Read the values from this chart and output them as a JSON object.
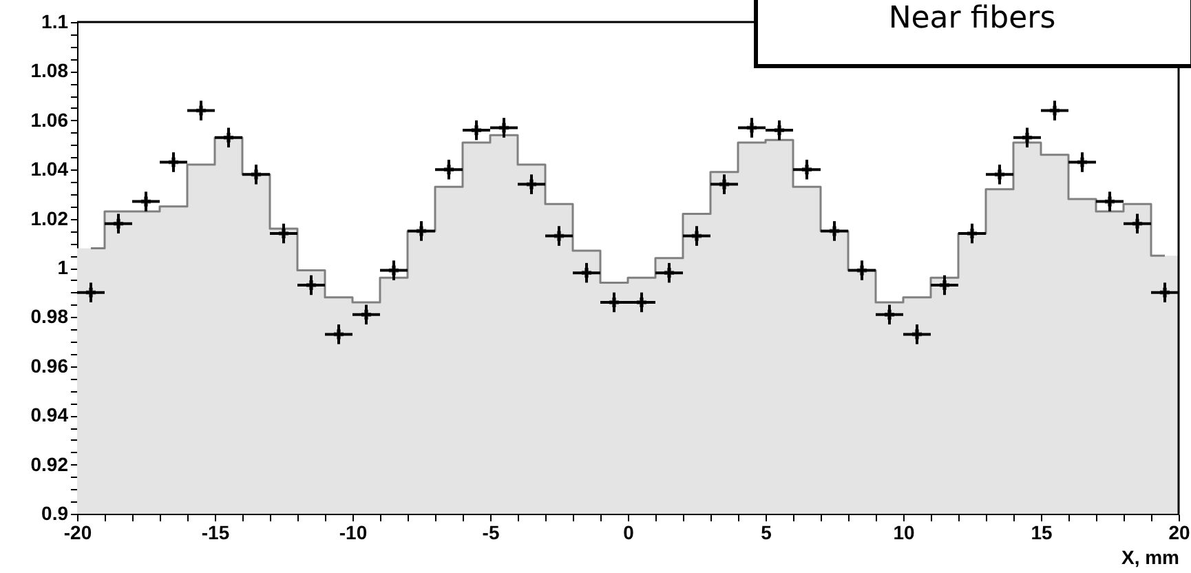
{
  "chart_data": {
    "type": "histogram",
    "title": "Near fibers",
    "xlabel": "X, mm",
    "bins": [
      -20,
      -19,
      -18,
      -17,
      -16,
      -15,
      -14,
      -13,
      -12,
      -11,
      -10,
      -9,
      -8,
      -7,
      -6,
      -5,
      -4,
      -3,
      -2,
      -1,
      0,
      1,
      2,
      3,
      4,
      5,
      6,
      7,
      8,
      9,
      10,
      11,
      12,
      13,
      14,
      15,
      16,
      17,
      18,
      19,
      20
    ],
    "series": [
      {
        "color": "#e4e4e4",
        "values": [
          1.008,
          1.023,
          1.023,
          1.025,
          1.042,
          1.053,
          1.038,
          1.016,
          0.999,
          0.988,
          0.986,
          0.996,
          1.015,
          1.033,
          1.051,
          1.054,
          1.042,
          1.026,
          1.007,
          0.994,
          0.996,
          1.004,
          1.022,
          1.039,
          1.051,
          1.052,
          1.033,
          1.015,
          0.999,
          0.986,
          0.988,
          0.996,
          1.014,
          1.032,
          1.051,
          1.046,
          1.028,
          1.023,
          1.026,
          1.005
        ]
      },
      {
        "type": "step",
        "color": "#808080",
        "x": [
          -19.5,
          -18.5,
          -17.5,
          -16.5,
          -15.5,
          -14.5,
          -13.5,
          -12.5,
          -11.5,
          -10.5,
          -9.5,
          -8.5,
          -7.5,
          -6.5,
          -5.5,
          -4.5,
          -3.5,
          -2.5,
          -1.5,
          -0.5,
          0.5,
          1.5,
          2.5,
          3.5,
          4.5,
          5.5,
          6.5,
          7.5,
          8.5,
          9.5,
          10.5,
          11.5,
          12.5,
          13.5,
          14.5,
          15.5,
          16.5,
          17.5,
          18.5,
          19.5
        ],
        "values": [
          1.008,
          1.023,
          1.023,
          1.025,
          1.042,
          1.053,
          1.038,
          1.016,
          0.999,
          0.988,
          0.986,
          0.996,
          1.015,
          1.033,
          1.051,
          1.054,
          1.042,
          1.026,
          1.007,
          0.994,
          0.996,
          1.004,
          1.022,
          1.039,
          1.051,
          1.052,
          1.033,
          1.015,
          0.999,
          0.986,
          0.988,
          0.996,
          1.014,
          1.032,
          1.051,
          1.046,
          1.028,
          1.023,
          1.026,
          1.005
        ]
      },
      {
        "type": "scatter",
        "color": "#000000",
        "marker": "cross",
        "x": [
          -19.5,
          -18.5,
          -17.5,
          -16.5,
          -15.5,
          -14.5,
          -13.5,
          -12.5,
          -11.5,
          -10.5,
          -9.5,
          -8.5,
          -7.5,
          -6.5,
          -5.5,
          -4.5,
          -3.5,
          -2.5,
          -1.5,
          -0.5,
          0.5,
          1.5,
          2.5,
          3.5,
          4.5,
          5.5,
          6.5,
          7.5,
          8.5,
          9.5,
          10.5,
          11.5,
          12.5,
          13.5,
          14.5,
          15.5,
          16.5,
          17.5,
          18.5,
          19.5
        ],
        "values": [
          0.99,
          1.018,
          1.027,
          1.043,
          1.064,
          1.053,
          1.038,
          1.014,
          0.993,
          0.973,
          0.981,
          0.999,
          1.015,
          1.04,
          1.056,
          1.057,
          1.034,
          1.013,
          0.998,
          0.986,
          0.986,
          0.998,
          1.013,
          1.034,
          1.057,
          1.056,
          1.04,
          1.015,
          0.999,
          0.981,
          0.973,
          0.993,
          1.014,
          1.038,
          1.053,
          1.064,
          1.043,
          1.027,
          1.018,
          0.99
        ],
        "errors": [
          0.004,
          0.004,
          0.004,
          0.004,
          0.004,
          0.004,
          0.004,
          0.004,
          0.004,
          0.004,
          0.004,
          0.004,
          0.004,
          0.004,
          0.004,
          0.004,
          0.004,
          0.004,
          0.004,
          0.004,
          0.004,
          0.004,
          0.004,
          0.004,
          0.004,
          0.004,
          0.004,
          0.004,
          0.004,
          0.004,
          0.004,
          0.004,
          0.004,
          0.004,
          0.004,
          0.004,
          0.004,
          0.004,
          0.004,
          0.004
        ],
        "xerrors": [
          0.5,
          0.5,
          0.5,
          0.5,
          0.5,
          0.5,
          0.5,
          0.5,
          0.5,
          0.5,
          0.5,
          0.5,
          0.5,
          0.5,
          0.5,
          0.5,
          0.5,
          0.5,
          0.5,
          0.5,
          0.5,
          0.5,
          0.5,
          0.5,
          0.5,
          0.5,
          0.5,
          0.5,
          0.5,
          0.5,
          0.5,
          0.5,
          0.5,
          0.5,
          0.5,
          0.5,
          0.5,
          0.5,
          0.5,
          0.5
        ]
      }
    ],
    "xlim": [
      -20,
      20
    ],
    "xticks": [
      -20,
      {
        "value": -19,
        "label": null
      },
      {
        "value": -18,
        "label": null
      },
      {
        "value": -17,
        "label": null
      },
      {
        "value": -16,
        "label": null
      },
      -15,
      {
        "value": -14,
        "label": null
      },
      {
        "value": -13,
        "label": null
      },
      {
        "value": -12,
        "label": null
      },
      {
        "value": -11,
        "label": null
      },
      -10,
      {
        "value": -9,
        "label": null
      },
      {
        "value": -8,
        "label": null
      },
      {
        "value": -7,
        "label": null
      },
      {
        "value": -6,
        "label": null
      },
      -5,
      {
        "value": -4,
        "label": null
      },
      {
        "value": -3,
        "label": null
      },
      {
        "value": -2,
        "label": null
      },
      {
        "value": -1,
        "label": null
      },
      0,
      {
        "value": 1,
        "label": null
      },
      {
        "value": 2,
        "label": null
      },
      {
        "value": 3,
        "label": null
      },
      {
        "value": 4,
        "label": null
      },
      5,
      {
        "value": 6,
        "label": null
      },
      {
        "value": 7,
        "label": null
      },
      {
        "value": 8,
        "label": null
      },
      {
        "value": 9,
        "label": null
      },
      10,
      {
        "value": 11,
        "label": null
      },
      {
        "value": 12,
        "label": null
      },
      {
        "value": 13,
        "label": null
      },
      {
        "value": 14,
        "label": null
      },
      15,
      {
        "value": 16,
        "label": null
      },
      {
        "value": 17,
        "label": null
      },
      {
        "value": 18,
        "label": null
      },
      {
        "value": 19,
        "label": null
      },
      20
    ],
    "ylim": [
      0.9,
      1.1
    ],
    "yticks": [
      0.9,
      {
        "value": 0.905,
        "label": null
      },
      {
        "value": 0.91,
        "label": null
      },
      {
        "value": 0.915,
        "label": null
      },
      0.92,
      {
        "value": 0.925,
        "label": null
      },
      {
        "value": 0.93,
        "label": null
      },
      {
        "value": 0.935,
        "label": null
      },
      0.94,
      {
        "value": 0.945,
        "label": null
      },
      {
        "value": 0.95,
        "label": null
      },
      {
        "value": 0.955,
        "label": null
      },
      0.96,
      {
        "value": 0.965,
        "label": null
      },
      {
        "value": 0.97,
        "label": null
      },
      {
        "value": 0.975,
        "label": null
      },
      0.98,
      {
        "value": 0.985,
        "label": null
      },
      {
        "value": 0.99,
        "label": null
      },
      {
        "value": 0.995,
        "label": null
      },
      1,
      {
        "value": 1.005,
        "label": null
      },
      {
        "value": 1.01,
        "label": null
      },
      {
        "value": 1.015,
        "label": null
      },
      1.02,
      {
        "value": 1.025,
        "label": null
      },
      {
        "value": 1.03,
        "label": null
      },
      {
        "value": 1.035,
        "label": null
      },
      1.04,
      {
        "value": 1.045,
        "label": null
      },
      {
        "value": 1.05,
        "label": null
      },
      {
        "value": 1.055,
        "label": null
      },
      1.06,
      {
        "value": 1.065,
        "label": null
      },
      {
        "value": 1.07,
        "label": null
      },
      {
        "value": 1.075,
        "label": null
      },
      1.08,
      {
        "value": 1.085,
        "label": null
      },
      {
        "value": 1.09,
        "label": null
      },
      {
        "value": 1.095,
        "label": null
      },
      1.1
    ],
    "grid": false
  }
}
